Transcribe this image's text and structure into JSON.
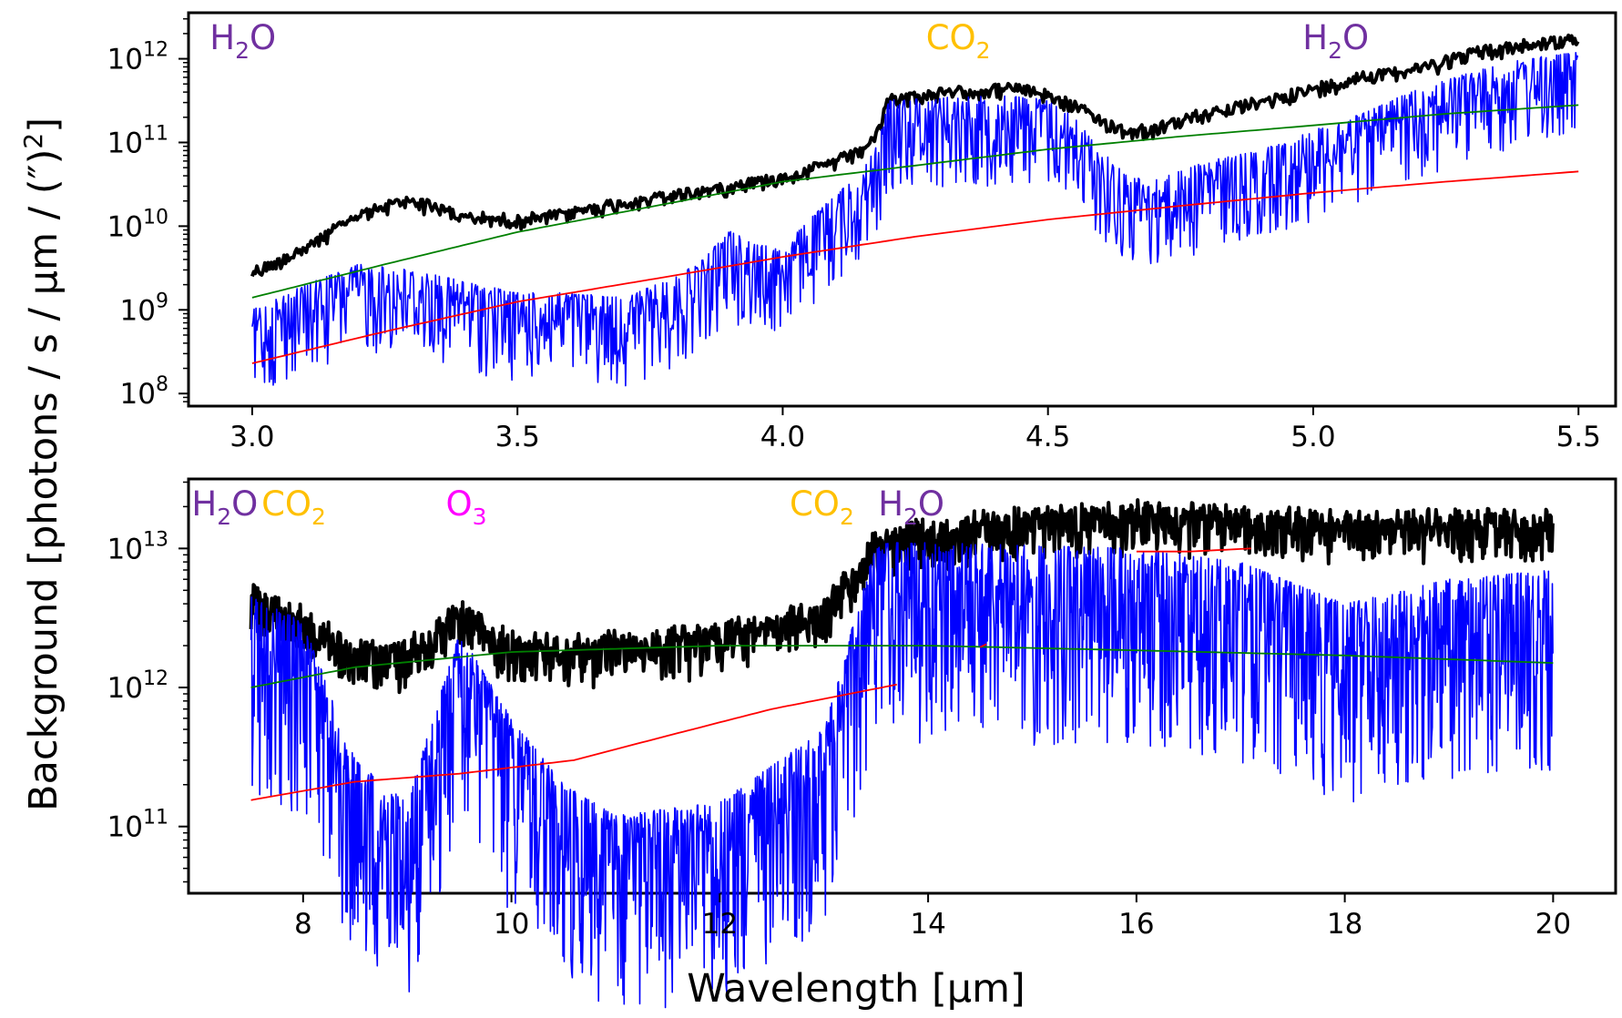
{
  "figure": {
    "ylabel": "Background [photons / s / µm / (″)²]",
    "ylabel_parts": {
      "main": "Background [photons / s / µm / (″)",
      "sup": "2",
      "end": "]"
    },
    "xlabel": "Wavelength [µm]"
  },
  "colors": {
    "total": "#000000",
    "transmitted": "#0000ff",
    "thermal": "#008000",
    "other": "#ff0000",
    "h2o": "#7030a0",
    "co2": "#ffc000",
    "o3": "#ff00ff"
  },
  "chart_data": [
    {
      "type": "line",
      "panel": "top",
      "y_scale": "log",
      "xlim": [
        2.88,
        5.57
      ],
      "ylim_log10": [
        7.85,
        12.55
      ],
      "xticks": [
        "3.0",
        "3.5",
        "4.0",
        "4.5",
        "5.0",
        "5.5"
      ],
      "yticks": [
        {
          "base": "10",
          "exp": "8"
        },
        {
          "base": "10",
          "exp": "9"
        },
        {
          "base": "10",
          "exp": "10"
        },
        {
          "base": "10",
          "exp": "11"
        },
        {
          "base": "10",
          "exp": "12"
        }
      ],
      "labels": [
        {
          "mol": "H",
          "sub": "2",
          "rest": "O",
          "color": "h2o",
          "x": 2.92
        },
        {
          "mol": "CO",
          "sub": "2",
          "rest": "",
          "color": "co2",
          "x": 4.27
        },
        {
          "mol": "H",
          "sub": "2",
          "rest": "O",
          "color": "h2o",
          "x": 4.98
        }
      ],
      "series": [
        {
          "key": "total",
          "width": 4,
          "x": [
            3.0,
            3.1,
            3.2,
            3.3,
            3.4,
            3.5,
            3.6,
            3.7,
            3.8,
            3.9,
            4.0,
            4.1,
            4.15,
            4.18,
            4.2,
            4.3,
            4.45,
            4.5,
            4.55,
            4.6,
            4.65,
            4.7,
            4.8,
            4.9,
            5.0,
            5.1,
            5.2,
            5.3,
            5.4,
            5.5
          ],
          "y": [
            3000000000.0,
            6000000000.0,
            15000000000.0,
            23000000000.0,
            14000000000.0,
            13000000000.0,
            16000000000.0,
            21000000000.0,
            26000000000.0,
            33000000000.0,
            43000000000.0,
            65000000000.0,
            90000000000.0,
            150000000000.0,
            360000000000.0,
            430000000000.0,
            490000000000.0,
            400000000000.0,
            300000000000.0,
            200000000000.0,
            150000000000.0,
            160000000000.0,
            250000000000.0,
            330000000000.0,
            480000000000.0,
            700000000000.0,
            850000000000.0,
            1300000000000.0,
            1600000000000.0,
            1900000000000.0
          ],
          "noise": 0.15,
          "step": 0.003
        },
        {
          "key": "transmitted",
          "width": 1.6,
          "x": [
            3.0,
            3.1,
            3.2,
            3.3,
            3.4,
            3.5,
            3.6,
            3.7,
            3.8,
            3.85,
            3.9,
            3.95,
            4.0,
            4.05,
            4.1,
            4.15,
            4.18,
            4.2,
            4.3,
            4.45,
            4.5,
            4.55,
            4.6,
            4.65,
            4.7,
            4.8,
            4.9,
            5.0,
            5.1,
            5.2,
            5.3,
            5.4,
            5.5
          ],
          "y": [
            1000000000.0,
            2000000000.0,
            3500000000.0,
            3000000000.0,
            2200000000.0,
            1600000000.0,
            1600000000.0,
            1400000000.0,
            2500000000.0,
            4000000000.0,
            9000000000.0,
            6000000000.0,
            5500000000.0,
            12000000000.0,
            24000000000.0,
            45000000000.0,
            100000000000.0,
            320000000000.0,
            350000000000.0,
            360000000000.0,
            320000000000.0,
            200000000000.0,
            80000000000.0,
            40000000000.0,
            35000000000.0,
            60000000000.0,
            80000000000.0,
            140000000000.0,
            230000000000.0,
            450000000000.0,
            700000000000.0,
            1000000000000.0,
            1200000000000.0
          ],
          "noise": 0.6,
          "step": 0.0018
        },
        {
          "key": "thermal",
          "width": 1.8,
          "x": [
            3.0,
            3.25,
            3.5,
            3.75,
            4.0,
            4.25,
            4.5,
            4.75,
            5.0,
            5.25,
            5.5
          ],
          "y": [
            1400000000.0,
            3500000000.0,
            8500000000.0,
            17000000000.0,
            34000000000.0,
            53000000000.0,
            83000000000.0,
            118000000000.0,
            160000000000.0,
            220000000000.0,
            280000000000.0
          ],
          "noise": 0,
          "step": 0.01
        },
        {
          "key": "other",
          "width": 1.8,
          "x": [
            3.0,
            3.25,
            3.5,
            3.75,
            4.0,
            4.25,
            4.5,
            4.75,
            5.0,
            5.25,
            5.5
          ],
          "y": [
            230000000.0,
            550000000.0,
            1250000000.0,
            2300000000.0,
            4300000000.0,
            7500000000.0,
            12000000000.0,
            17500000000.0,
            25000000000.0,
            34000000000.0,
            45000000000.0
          ],
          "noise": 0,
          "step": 0.01
        }
      ]
    },
    {
      "type": "line",
      "panel": "bottom",
      "y_scale": "log",
      "xlim": [
        6.9,
        20.6
      ],
      "ylim_log10": [
        10.52,
        13.5
      ],
      "xticks": [
        "8",
        "10",
        "12",
        "14",
        "16",
        "18",
        "20"
      ],
      "yticks": [
        {
          "base": "10",
          "exp": "11"
        },
        {
          "base": "10",
          "exp": "12"
        },
        {
          "base": "10",
          "exp": "13"
        }
      ],
      "labels": [
        {
          "mol": "H",
          "sub": "2",
          "rest": "O",
          "color": "h2o",
          "x": 6.93
        },
        {
          "mol": "CO",
          "sub": "2",
          "rest": "",
          "color": "co2",
          "x": 7.6
        },
        {
          "mol": "O",
          "sub": "3",
          "rest": "",
          "color": "o3",
          "x": 9.37
        },
        {
          "mol": "CO",
          "sub": "2",
          "rest": "",
          "color": "co2",
          "x": 12.67
        },
        {
          "mol": "H",
          "sub": "2",
          "rest": "O",
          "color": "h2o",
          "x": 13.52
        }
      ],
      "series": [
        {
          "key": "total",
          "width": 4,
          "x": [
            7.5,
            8.0,
            8.5,
            9.0,
            9.5,
            10.0,
            10.5,
            11.0,
            12.0,
            13.0,
            13.5,
            14.0,
            15.0,
            16.0,
            17.0,
            18.0,
            19.0,
            20.0
          ],
          "y": [
            5000000000000.0,
            3500000000000.0,
            2000000000000.0,
            2000000000000.0,
            3800000000000.0,
            2300000000000.0,
            2100000000000.0,
            2300000000000.0,
            2600000000000.0,
            4000000000000.0,
            12000000000000.0,
            15000000000000.0,
            18000000000000.0,
            20000000000000.0,
            18000000000000.0,
            17000000000000.0,
            17000000000000.0,
            17000000000000.0
          ],
          "noise": 0.3,
          "step": 0.008
        },
        {
          "key": "transmitted",
          "width": 1.6,
          "x": [
            7.5,
            8.0,
            8.5,
            9.0,
            9.5,
            10.0,
            10.5,
            11.0,
            12.0,
            13.0,
            13.5,
            14.0,
            15.0,
            16.0,
            17.0,
            18.0,
            19.0,
            20.0
          ],
          "y": [
            4500000000000.0,
            3000000000000.0,
            300000000000.0,
            150000000000.0,
            2500000000000.0,
            600000000000.0,
            200000000000.0,
            120000000000.0,
            150000000000.0,
            500000000000.0,
            11000000000000.0,
            11000000000000.0,
            10500000000000.0,
            10000000000000.0,
            8000000000000.0,
            4000000000000.0,
            6000000000000.0,
            7000000000000.0
          ],
          "noise": 0.8,
          "step": 0.006
        },
        {
          "key": "thermal",
          "width": 1.8,
          "x": [
            7.5,
            8.5,
            10.0,
            12.0,
            14.0,
            16.0,
            18.0,
            20.0
          ],
          "y": [
            1000000000000.0,
            1400000000000.0,
            1800000000000.0,
            2000000000000.0,
            2000000000000.0,
            1850000000000.0,
            1700000000000.0,
            1500000000000.0
          ],
          "noise": 0,
          "step": 0.05
        },
        {
          "key": "other",
          "width": 1.8,
          "x": [
            7.5,
            8.5,
            9.5,
            10.6,
            11.5,
            12.5,
            13.7
          ],
          "y": [
            155000000000.0,
            210000000000.0,
            240000000000.0,
            300000000000.0,
            450000000000.0,
            700000000000.0,
            1050000000000.0
          ],
          "noise": 0,
          "step": 0.05
        },
        {
          "key": "other",
          "width": 1.8,
          "x": [
            16.0,
            16.5,
            17.1
          ],
          "y": [
            9500000000000.0,
            9500000000000.0,
            10000000000000.0
          ],
          "noise": 0,
          "step": 0.05
        },
        {
          "key": "other",
          "width": 1.8,
          "x": [
            14.5,
            14.56
          ],
          "y": [
            1950000000000.0,
            2050000000000.0
          ],
          "noise": 0,
          "step": 0.02
        }
      ]
    }
  ]
}
